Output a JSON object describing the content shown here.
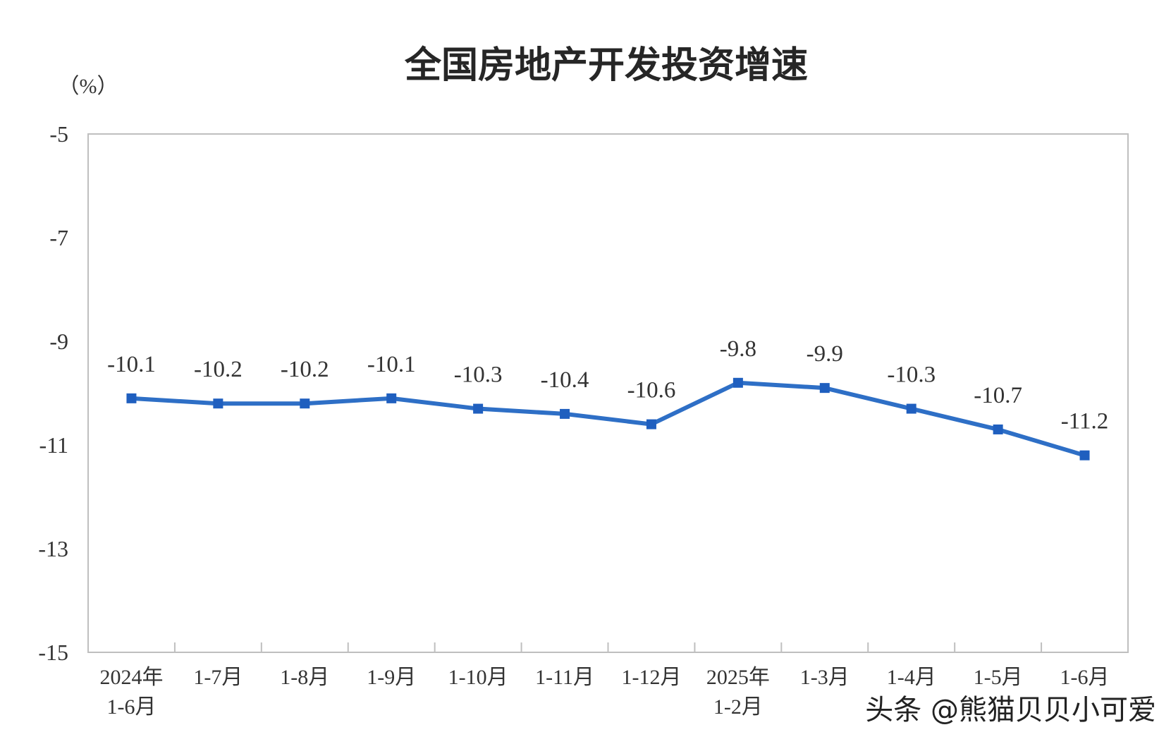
{
  "chart_data": {
    "type": "line",
    "title": "全国房地产开发投资增速",
    "unit_label": "（%）",
    "categories": [
      [
        "2024年",
        "1-6月"
      ],
      [
        "1-7月"
      ],
      [
        "1-8月"
      ],
      [
        "1-9月"
      ],
      [
        "1-10月"
      ],
      [
        "1-11月"
      ],
      [
        "1-12月"
      ],
      [
        "2025年",
        "1-2月"
      ],
      [
        "1-3月"
      ],
      [
        "1-4月"
      ],
      [
        "1-5月"
      ],
      [
        "1-6月"
      ]
    ],
    "values": [
      -10.1,
      -10.2,
      -10.2,
      -10.1,
      -10.3,
      -10.4,
      -10.6,
      -9.8,
      -9.9,
      -10.3,
      -10.7,
      -11.2
    ],
    "data_labels": [
      "-10.1",
      "-10.2",
      "-10.2",
      "-10.1",
      "-10.3",
      "-10.4",
      "-10.6",
      "-9.8",
      "-9.9",
      "-10.3",
      "-10.7",
      "-11.2"
    ],
    "ylim": [
      -15,
      -5
    ],
    "yticks": [
      -5,
      -7,
      -9,
      -11,
      -13,
      -15
    ],
    "ytick_labels": [
      "-5",
      "-7",
      "-9",
      "-11",
      "-13",
      "-15"
    ],
    "grid": false,
    "line_color": "#2e6fc6",
    "marker_color": "#1f5fbf",
    "axis_color": "#bfbfbf"
  },
  "watermark": "头条 @熊猫贝贝小可爱"
}
